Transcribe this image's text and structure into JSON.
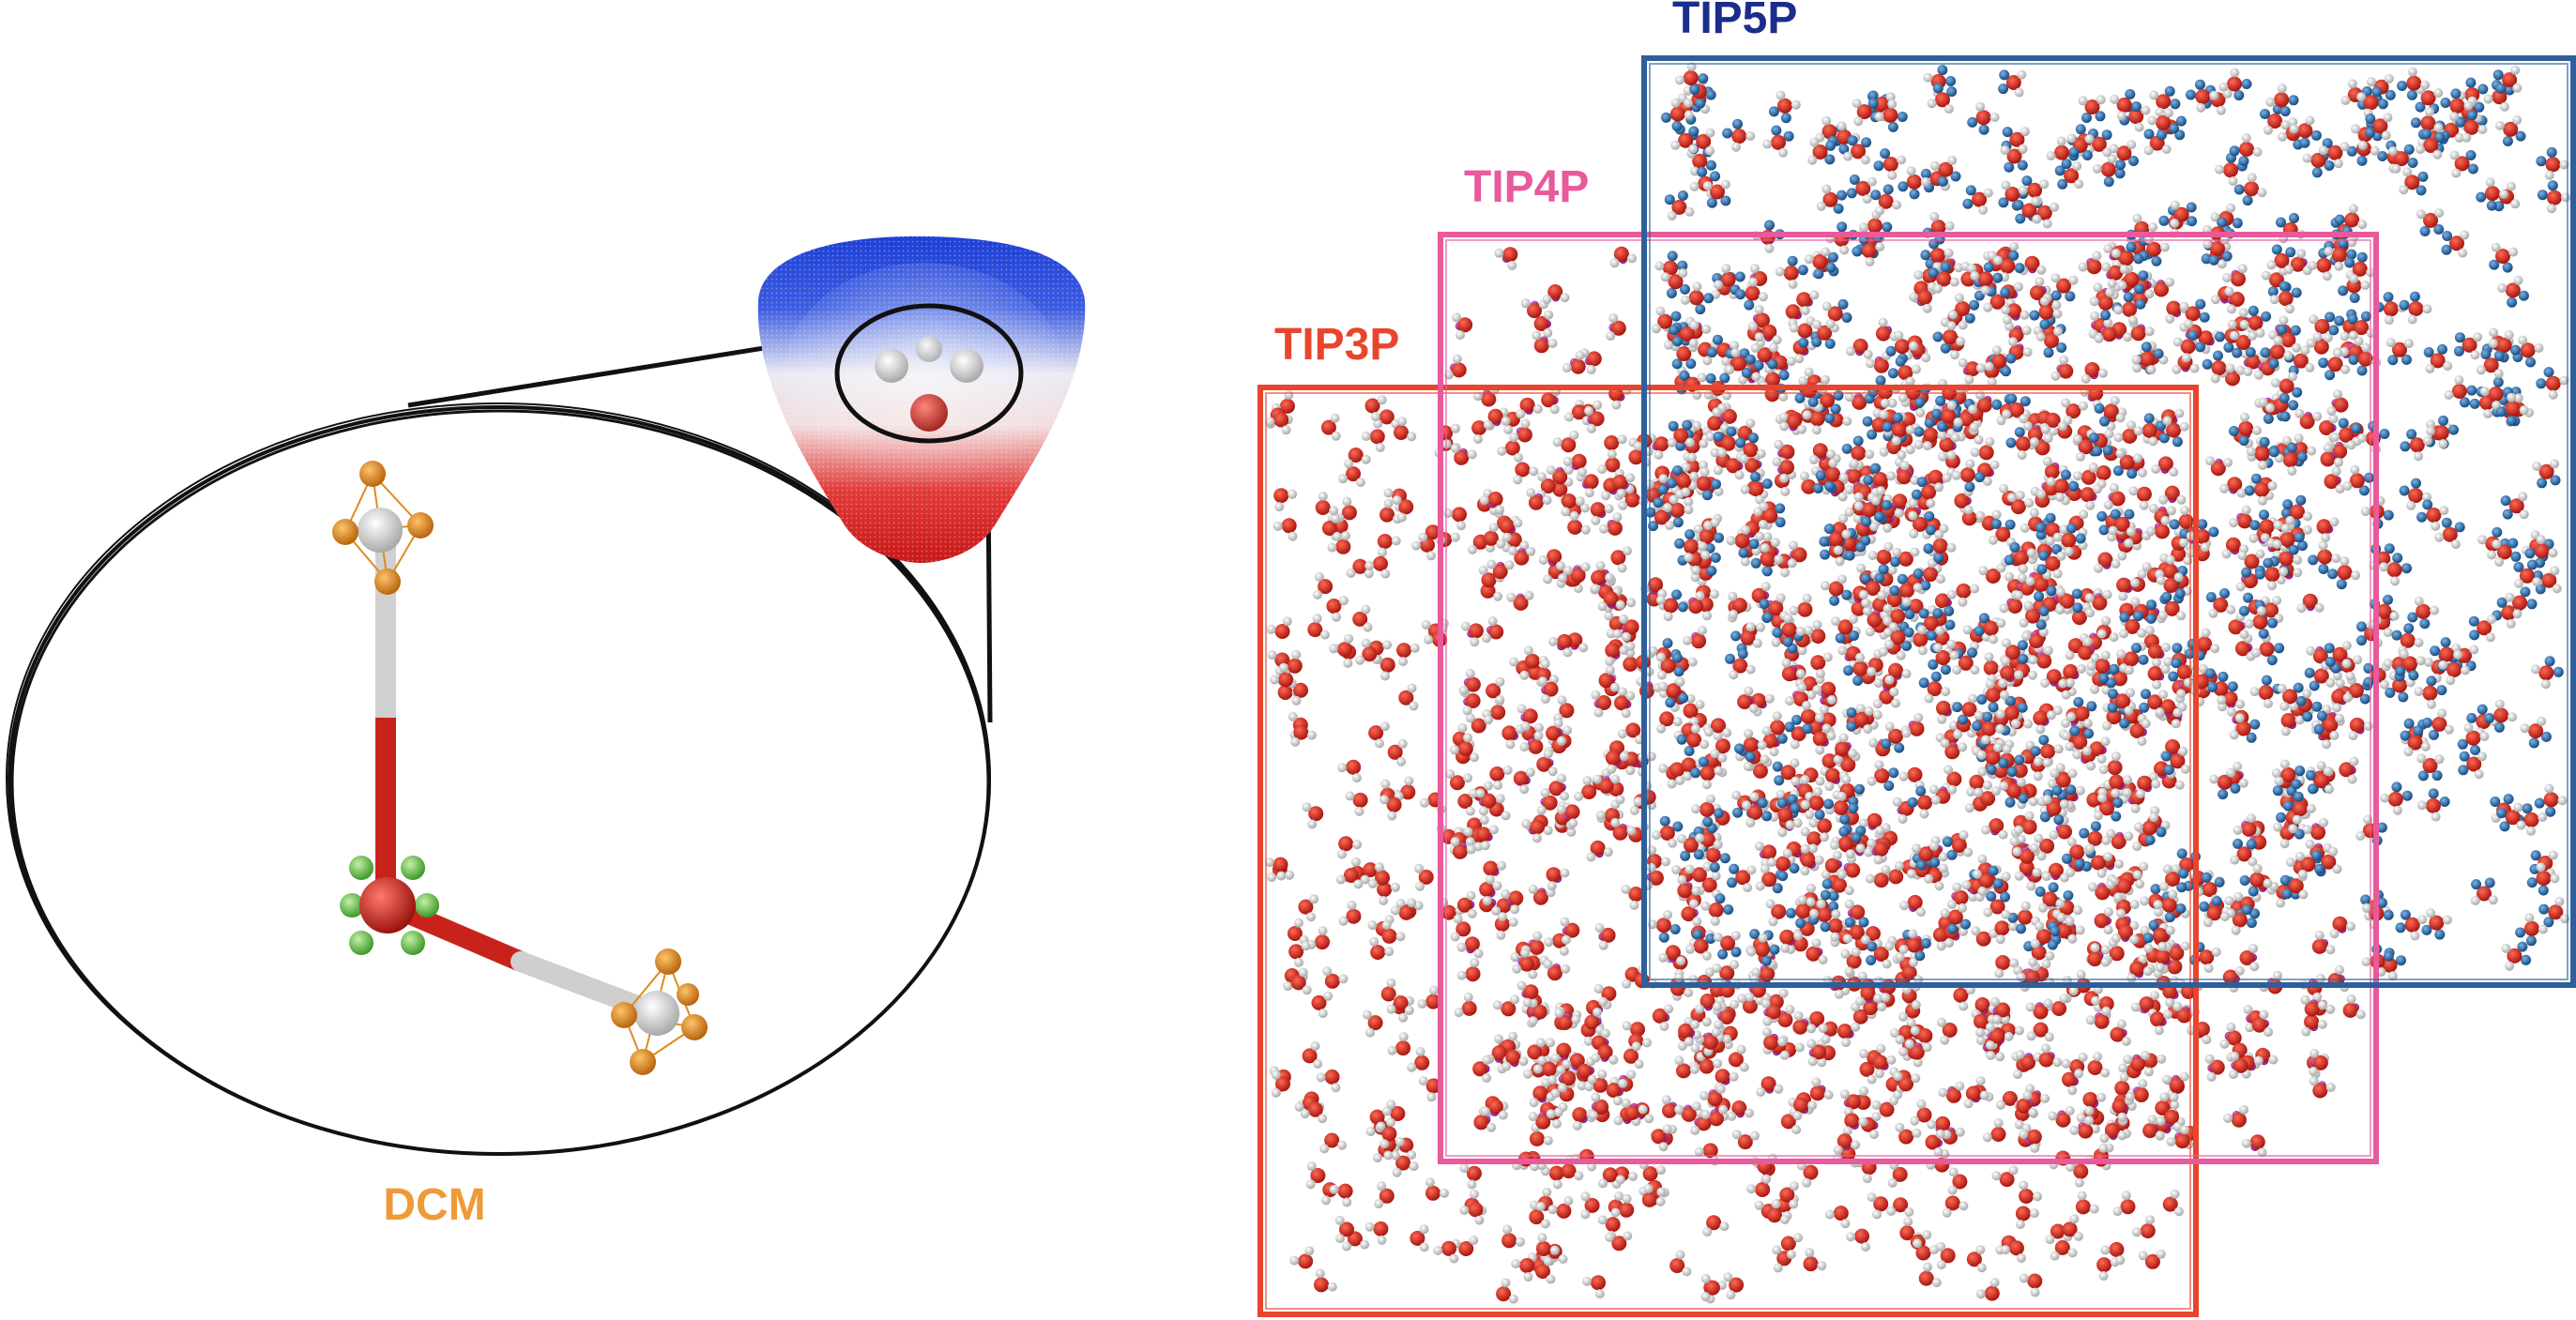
{
  "labels": {
    "dcm": "DCM",
    "tip3p": "TIP3P",
    "tip4p": "TIP4P",
    "tip5p": "TIP5P"
  },
  "colors": {
    "dcm": "#ef9a3a",
    "tip3p": "#e8452e",
    "tip4p": "#e85a9c",
    "tip5p": "#2e5f9a",
    "tip5p_label": "#1b2c8c",
    "oxygen": "#d42a20",
    "hydrogen": "#e6e6e6",
    "dummy_site": "#b02abf",
    "lone_pair": "#2b6fb0",
    "drude_orange": "#e08a1e",
    "drude_green": "#6cc44c",
    "outline": "#111111"
  },
  "icons": {
    "electrostatic_surface": "electrostatic-potential-surface",
    "water_model": "tip-water-molecule"
  }
}
